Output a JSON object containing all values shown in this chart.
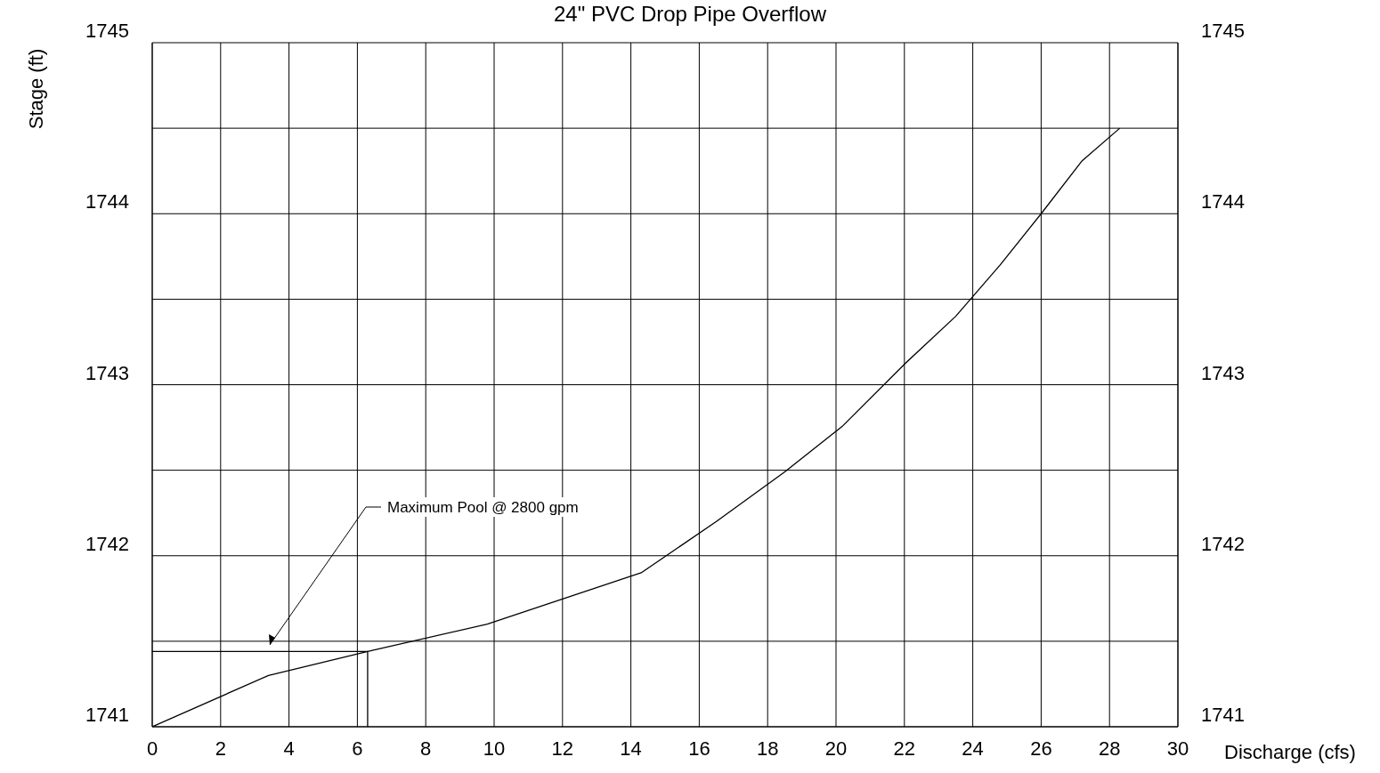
{
  "chart_data": {
    "type": "line",
    "title": "24\" PVC Drop Pipe Overflow",
    "xlabel": "Discharge (cfs)",
    "ylabel": "Stage (ft)",
    "xlim": [
      0,
      30
    ],
    "xticks": [
      0,
      2,
      4,
      6,
      8,
      10,
      12,
      14,
      16,
      18,
      20,
      22,
      24,
      26,
      28,
      30
    ],
    "ylim": [
      1741,
      1745
    ],
    "yticks": [
      1741,
      {
        "value": 1741.5,
        "label": null
      },
      1742,
      {
        "value": 1742.5,
        "label": null
      },
      1743,
      {
        "value": 1743.5,
        "label": null
      },
      1744,
      {
        "value": 1744.5,
        "label": null
      },
      1745
    ],
    "y2lim": [
      1741,
      1745
    ],
    "y2ticks": [
      1741,
      1742,
      1743,
      1744,
      1745
    ],
    "grid": true,
    "marker": "none",
    "line_style": "solid",
    "series": [
      {
        "color": "#000000",
        "x": [
          0,
          3.4,
          6.3,
          9.8,
          14.3,
          16.5,
          18.5,
          20.2,
          22,
          23.5,
          24.8,
          26,
          27.2,
          28.3
        ],
        "values": [
          1741,
          1741.3,
          1741.44,
          1741.6,
          1741.9,
          1742.2,
          1742.49,
          1742.76,
          1743.12,
          1743.4,
          1743.7,
          1744,
          1744.31,
          1744.5
        ]
      },
      {
        "color": "#000000",
        "x": [
          0,
          6.3,
          6.3
        ],
        "values": [
          1741.44,
          1741.44,
          1741
        ]
      }
    ],
    "annotations": [
      "Maximum Pool @ 2800 gpm"
    ]
  }
}
